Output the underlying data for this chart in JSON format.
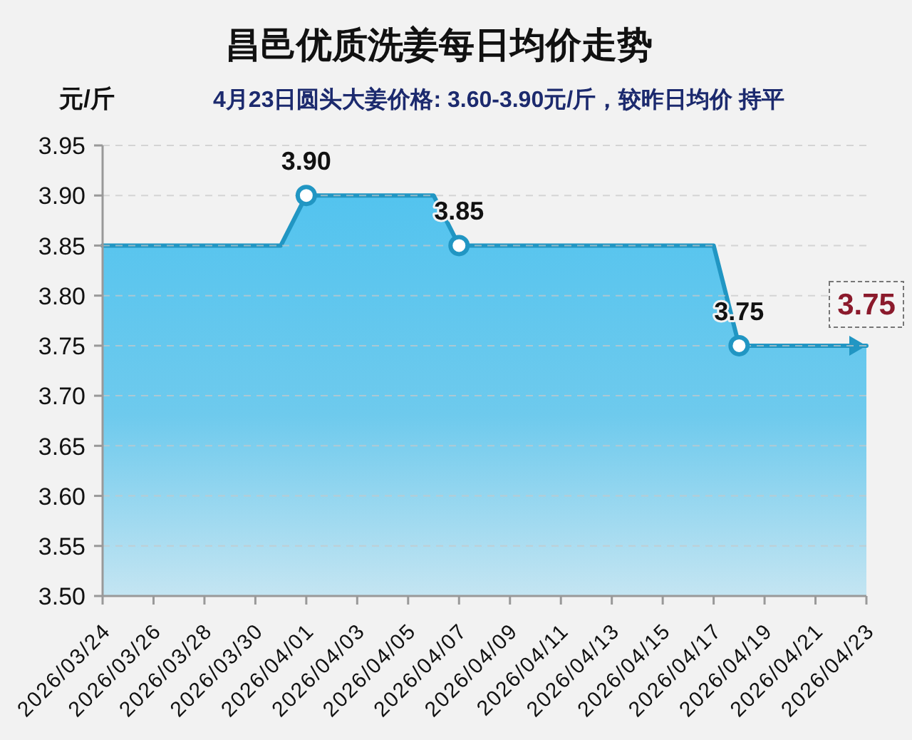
{
  "chart_data": {
    "type": "area",
    "title": "昌邑优质洗姜每日均价走势",
    "subtitle": "4月23日圆头大姜价格: 3.60-3.90元/斤，较昨日均价 持平",
    "ylabel": "元/斤",
    "xlim": [
      "2026-03-24",
      "2026-04-23"
    ],
    "xticks": [
      {
        "value": "2026-03-24",
        "label": "2026/03/24"
      },
      {
        "value": "2026-03-26",
        "label": "2026/03/26"
      },
      {
        "value": "2026-03-28",
        "label": "2026/03/28"
      },
      {
        "value": "2026-03-30",
        "label": "2026/03/30"
      },
      {
        "value": "2026-04-01",
        "label": "2026/04/01"
      },
      {
        "value": "2026-04-03",
        "label": "2026/04/03"
      },
      {
        "value": "2026-04-05",
        "label": "2026/04/05"
      },
      {
        "value": "2026-04-07",
        "label": "2026/04/07"
      },
      {
        "value": "2026-04-09",
        "label": "2026/04/09"
      },
      {
        "value": "2026-04-11",
        "label": "2026/04/11"
      },
      {
        "value": "2026-04-13",
        "label": "2026/04/13"
      },
      {
        "value": "2026-04-15",
        "label": "2026/04/15"
      },
      {
        "value": "2026-04-17",
        "label": "2026/04/17"
      },
      {
        "value": "2026-04-19",
        "label": "2026/04/19"
      },
      {
        "value": "2026-04-21",
        "label": "2026/04/21"
      },
      {
        "value": "2026-04-23",
        "label": "2026/04/23"
      }
    ],
    "ylim": [
      3.5,
      3.95
    ],
    "yticks": [
      {
        "value": 3.5,
        "label": "3.50"
      },
      {
        "value": 3.55,
        "label": "3.55"
      },
      {
        "value": 3.6,
        "label": "3.60"
      },
      {
        "value": 3.65,
        "label": "3.65"
      },
      {
        "value": 3.7,
        "label": "3.70"
      },
      {
        "value": 3.75,
        "label": "3.75"
      },
      {
        "value": 3.8,
        "label": "3.80"
      },
      {
        "value": 3.85,
        "label": "3.85"
      },
      {
        "value": 3.9,
        "label": "3.90"
      },
      {
        "value": 3.95,
        "label": "3.95"
      }
    ],
    "grid": "y",
    "series": [
      {
        "color": "#2196c3",
        "x": [
          "2026-03-24",
          "2026-03-31",
          "2026-04-01",
          "2026-04-06",
          "2026-04-07",
          "2026-04-17",
          "2026-04-18",
          "2026-04-23"
        ],
        "values": [
          3.85,
          3.85,
          3.9,
          3.9,
          3.85,
          3.85,
          3.75,
          3.75
        ]
      },
      {
        "type": "scatter",
        "color": "#2196c3",
        "marker": "circle",
        "x": [
          "2026-04-01",
          "2026-04-07",
          "2026-04-18"
        ],
        "values": [
          3.9,
          3.85,
          3.75
        ],
        "value_labels": [
          "3.90",
          "3.85",
          "3.75"
        ]
      }
    ],
    "annotations": [
      {
        "text": "3.75",
        "x": "2026-04-23",
        "y": 3.75
      }
    ]
  }
}
